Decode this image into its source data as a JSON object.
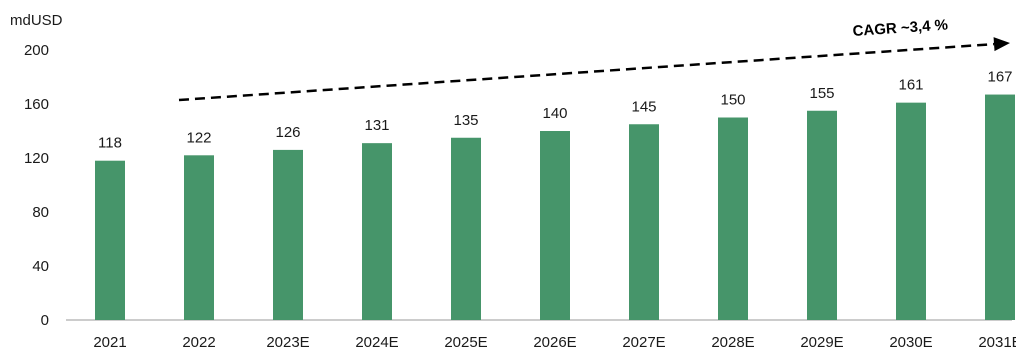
{
  "chart_data": {
    "type": "bar",
    "ylabel": "mdUSD",
    "categories": [
      "2021",
      "2022",
      "2023E",
      "2024E",
      "2025E",
      "2026E",
      "2027E",
      "2028E",
      "2029E",
      "2030E",
      "2031E"
    ],
    "values": [
      118,
      122,
      126,
      131,
      135,
      140,
      145,
      150,
      155,
      161,
      167
    ],
    "ylim": [
      0,
      200
    ],
    "yticks": [
      "0",
      "40",
      "80",
      "120",
      "160",
      "200"
    ],
    "grid": false,
    "bar_color": "#46956A",
    "annotation": {
      "text": "CAGR ~3,4 %",
      "arrow": "dashed",
      "from_category": "2022",
      "to_category": "2031E"
    }
  }
}
